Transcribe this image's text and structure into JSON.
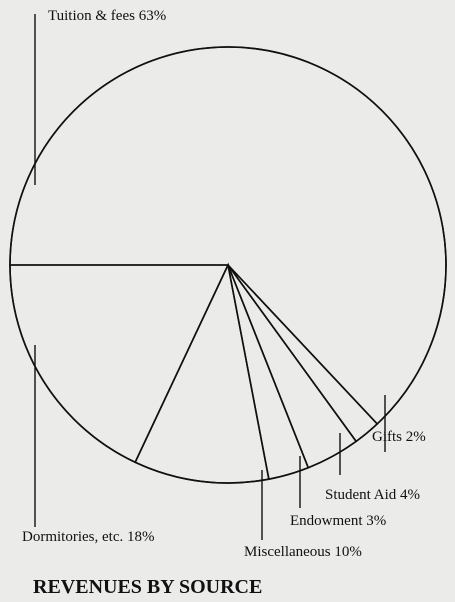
{
  "chart_data": {
    "type": "pie",
    "title": "REVENUES BY SOURCE",
    "categories": [
      "Tuition & fees",
      "Gifts",
      "Student Aid",
      "Endowment",
      "Miscellaneous",
      "Dormitories, etc."
    ],
    "values": [
      63,
      2,
      4,
      3,
      10,
      18
    ],
    "value_labels": [
      "63%",
      "2%",
      "4%",
      "3%",
      "10%",
      "18%"
    ]
  }
}
